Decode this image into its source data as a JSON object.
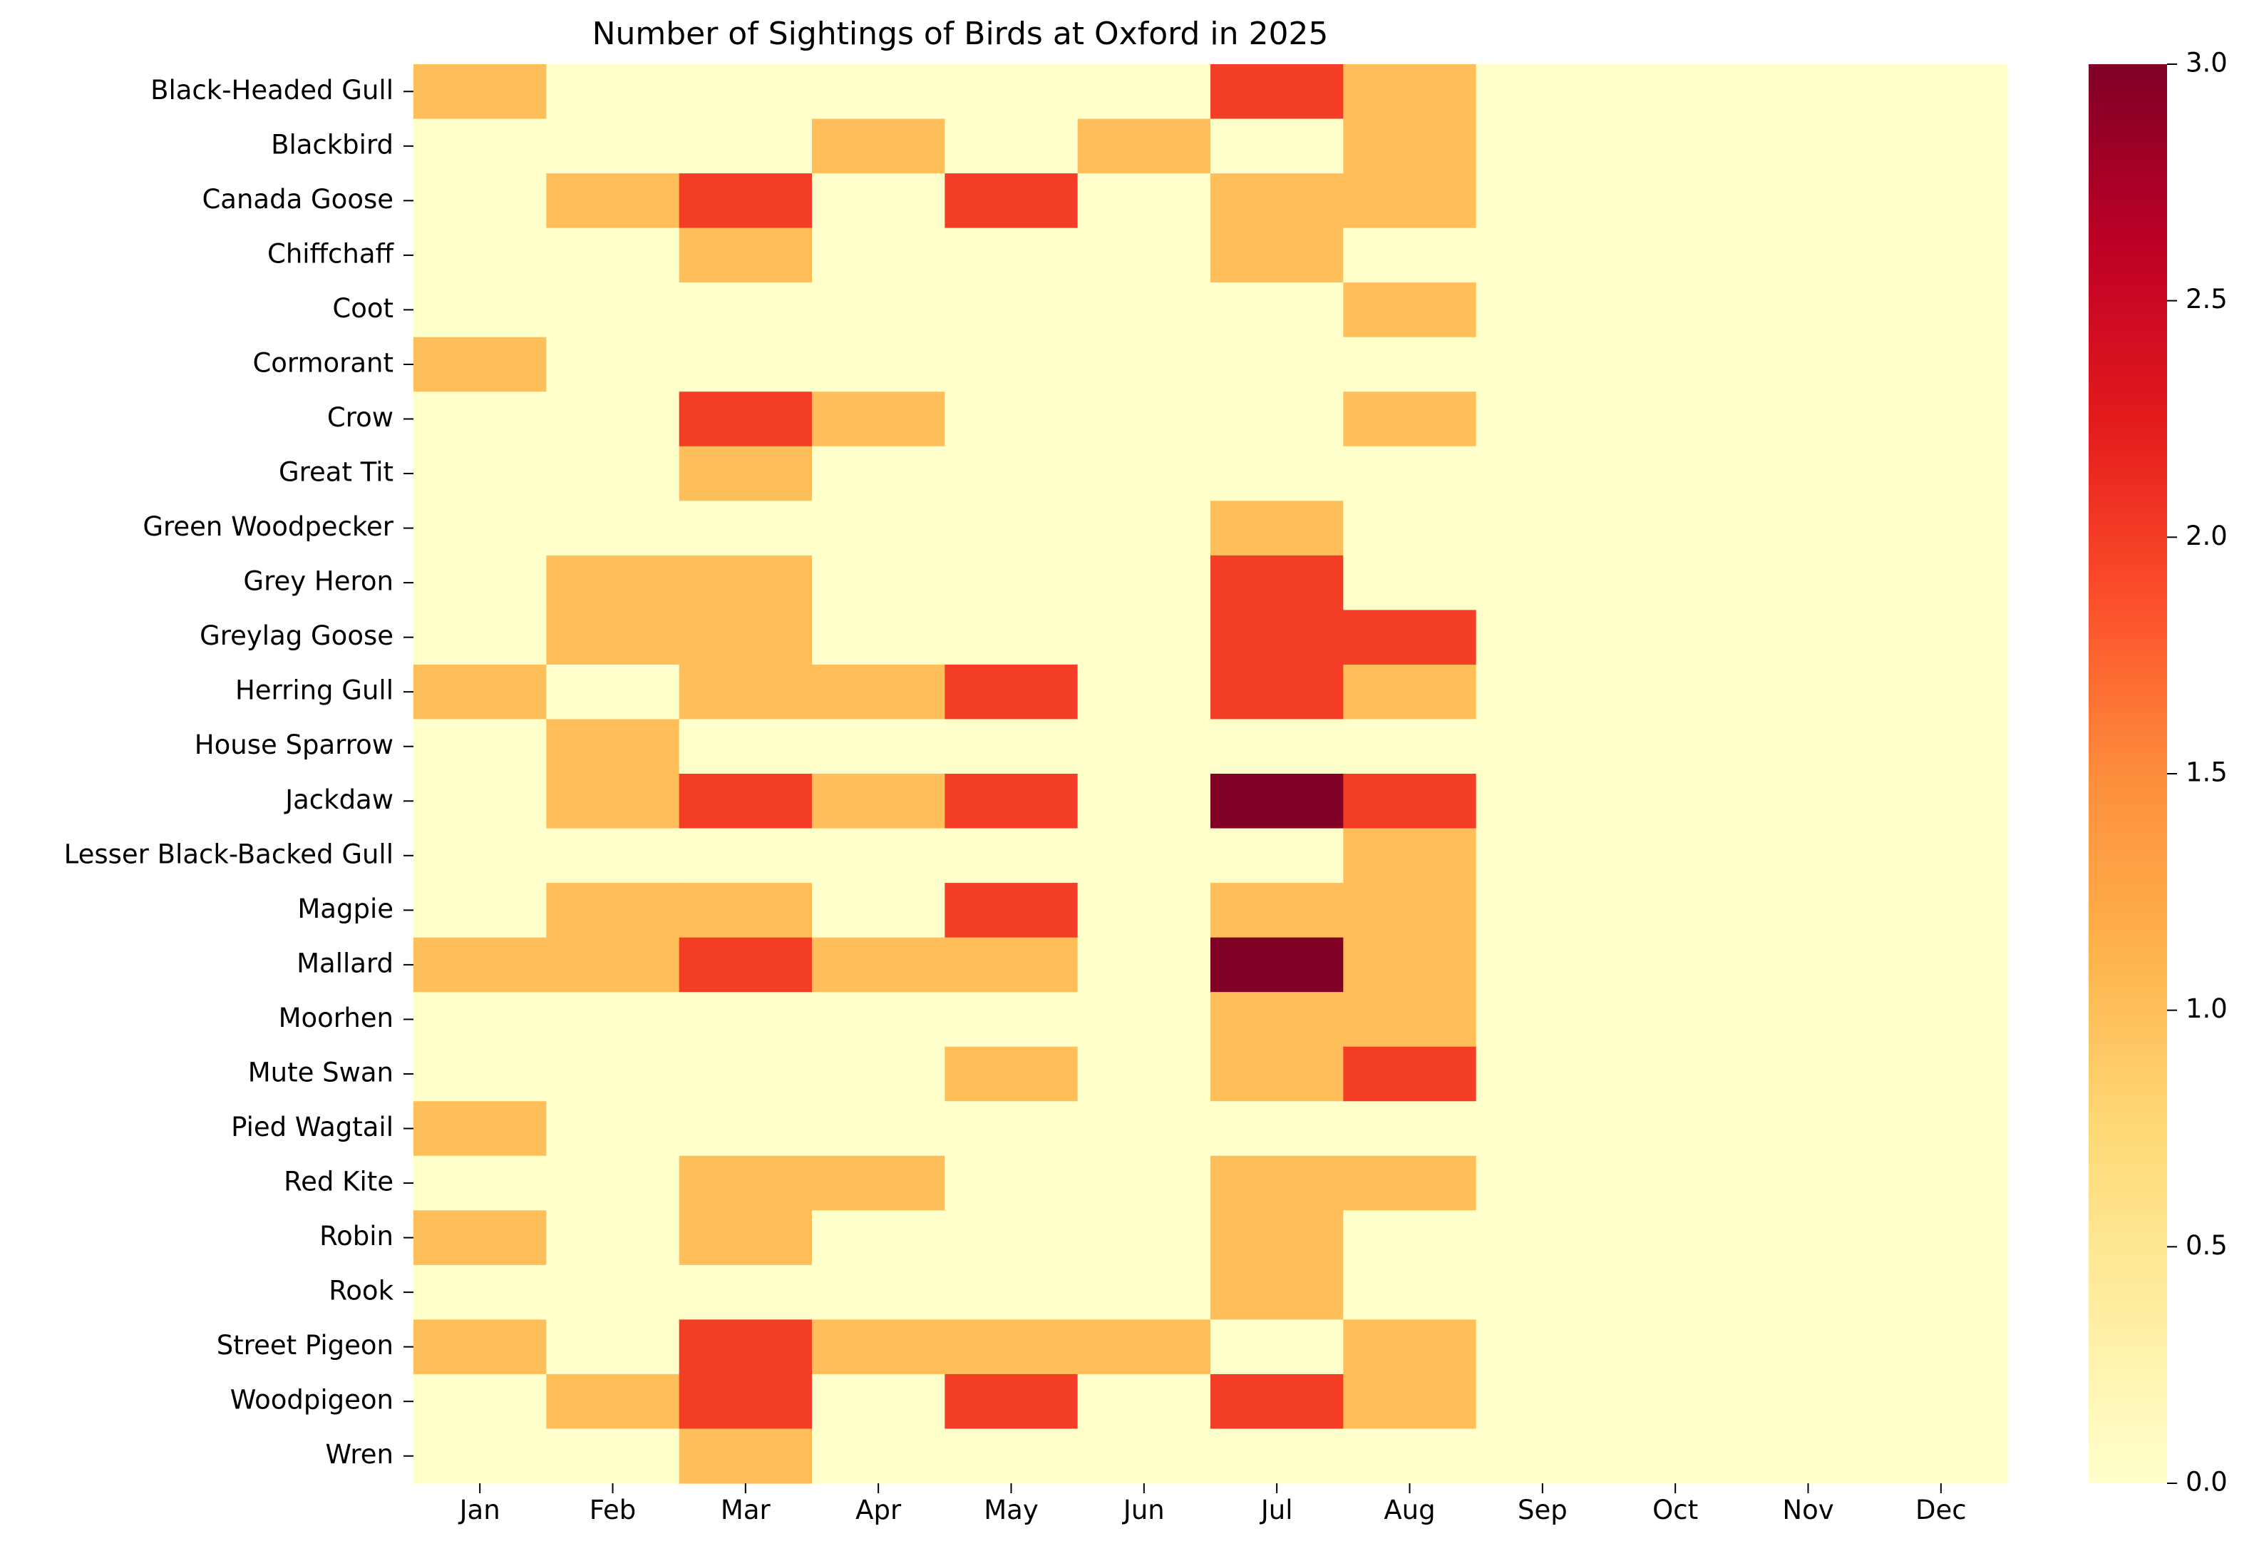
{
  "chart_data": {
    "type": "heatmap",
    "title": "Number of Sightings of Birds at Oxford in 2025",
    "xlabel": "",
    "ylabel": "",
    "x": [
      "Jan",
      "Feb",
      "Mar",
      "Apr",
      "May",
      "Jun",
      "Jul",
      "Aug",
      "Sep",
      "Oct",
      "Nov",
      "Dec"
    ],
    "y": [
      "Black-Headed Gull",
      "Blackbird",
      "Canada Goose",
      "Chiffchaff",
      "Coot",
      "Cormorant",
      "Crow",
      "Great Tit",
      "Green Woodpecker",
      "Grey Heron",
      "Greylag Goose",
      "Herring Gull",
      "House Sparrow",
      "Jackdaw",
      "Lesser Black-Backed Gull",
      "Magpie",
      "Mallard",
      "Moorhen",
      "Mute Swan",
      "Pied Wagtail",
      "Red Kite",
      "Robin",
      "Rook",
      "Street Pigeon",
      "Woodpigeon",
      "Wren"
    ],
    "values": [
      [
        1,
        0,
        0,
        0,
        0,
        0,
        2,
        1,
        0,
        0,
        0,
        0
      ],
      [
        0,
        0,
        0,
        1,
        0,
        1,
        0,
        1,
        0,
        0,
        0,
        0
      ],
      [
        0,
        1,
        2,
        0,
        2,
        0,
        1,
        1,
        0,
        0,
        0,
        0
      ],
      [
        0,
        0,
        1,
        0,
        0,
        0,
        1,
        0,
        0,
        0,
        0,
        0
      ],
      [
        0,
        0,
        0,
        0,
        0,
        0,
        0,
        1,
        0,
        0,
        0,
        0
      ],
      [
        1,
        0,
        0,
        0,
        0,
        0,
        0,
        0,
        0,
        0,
        0,
        0
      ],
      [
        0,
        0,
        2,
        1,
        0,
        0,
        0,
        1,
        0,
        0,
        0,
        0
      ],
      [
        0,
        0,
        1,
        0,
        0,
        0,
        0,
        0,
        0,
        0,
        0,
        0
      ],
      [
        0,
        0,
        0,
        0,
        0,
        0,
        1,
        0,
        0,
        0,
        0,
        0
      ],
      [
        0,
        1,
        1,
        0,
        0,
        0,
        2,
        0,
        0,
        0,
        0,
        0
      ],
      [
        0,
        1,
        1,
        0,
        0,
        0,
        2,
        2,
        0,
        0,
        0,
        0
      ],
      [
        1,
        0,
        1,
        1,
        2,
        0,
        2,
        1,
        0,
        0,
        0,
        0
      ],
      [
        0,
        1,
        0,
        0,
        0,
        0,
        0,
        0,
        0,
        0,
        0,
        0
      ],
      [
        0,
        1,
        2,
        1,
        2,
        0,
        3,
        2,
        0,
        0,
        0,
        0
      ],
      [
        0,
        0,
        0,
        0,
        0,
        0,
        0,
        1,
        0,
        0,
        0,
        0
      ],
      [
        0,
        1,
        1,
        0,
        2,
        0,
        1,
        1,
        0,
        0,
        0,
        0
      ],
      [
        1,
        1,
        2,
        1,
        1,
        0,
        3,
        1,
        0,
        0,
        0,
        0
      ],
      [
        0,
        0,
        0,
        0,
        0,
        0,
        1,
        1,
        0,
        0,
        0,
        0
      ],
      [
        0,
        0,
        0,
        0,
        1,
        0,
        1,
        2,
        0,
        0,
        0,
        0
      ],
      [
        1,
        0,
        0,
        0,
        0,
        0,
        0,
        0,
        0,
        0,
        0,
        0
      ],
      [
        0,
        0,
        1,
        1,
        0,
        0,
        1,
        1,
        0,
        0,
        0,
        0
      ],
      [
        1,
        0,
        1,
        0,
        0,
        0,
        1,
        0,
        0,
        0,
        0,
        0
      ],
      [
        0,
        0,
        0,
        0,
        0,
        0,
        1,
        0,
        0,
        0,
        0,
        0
      ],
      [
        1,
        0,
        2,
        1,
        1,
        1,
        0,
        1,
        0,
        0,
        0,
        0
      ],
      [
        0,
        1,
        2,
        0,
        2,
        0,
        2,
        1,
        0,
        0,
        0,
        0
      ],
      [
        0,
        0,
        1,
        0,
        0,
        0,
        0,
        0,
        0,
        0,
        0,
        0
      ]
    ],
    "colorbar": {
      "min": 0,
      "max": 3,
      "ticks": [
        "0.0",
        "0.5",
        "1.0",
        "1.5",
        "2.0",
        "2.5",
        "3.0"
      ],
      "colormap": "YlOrRd",
      "stops": [
        "#ffffcc",
        "#ffeda0",
        "#fed976",
        "#feb24c",
        "#fd8d3c",
        "#fc4e2a",
        "#e31a1c",
        "#bd0026",
        "#800026"
      ]
    },
    "grid": false,
    "legend": "colorbar right"
  }
}
